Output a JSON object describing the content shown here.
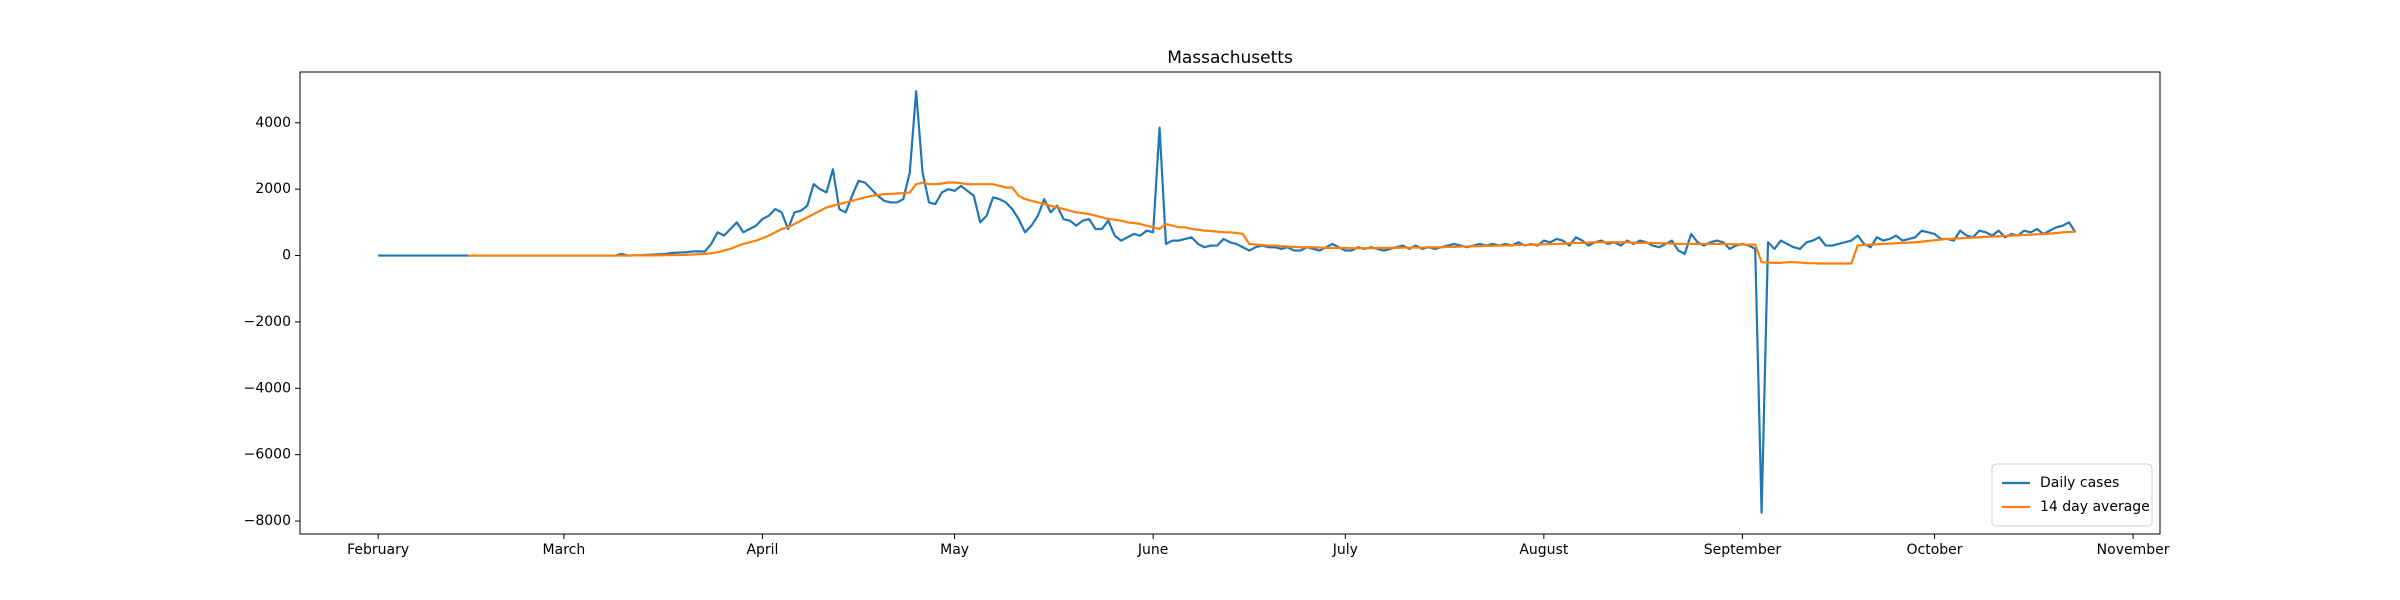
{
  "chart_data": {
    "type": "line",
    "title": "Massachusetts",
    "x": [
      0,
      1,
      2,
      3,
      4,
      5,
      6,
      7,
      8,
      9,
      10,
      11,
      12,
      13,
      14,
      15,
      16,
      17,
      18,
      19,
      20,
      21,
      22,
      23,
      24,
      25,
      26,
      27,
      28,
      29,
      30,
      31,
      32,
      33,
      34,
      35,
      36,
      37,
      38,
      39,
      40,
      41,
      42,
      43,
      44,
      45,
      46,
      47,
      48,
      49,
      50,
      51,
      52,
      53,
      54,
      55,
      56,
      57,
      58,
      59,
      60,
      61,
      62,
      63,
      64,
      65,
      66,
      67,
      68,
      69,
      70,
      71,
      72,
      73,
      74,
      75,
      76,
      77,
      78,
      79,
      80,
      81,
      82,
      83,
      84,
      85,
      86,
      87,
      88,
      89,
      90,
      91,
      92,
      93,
      94,
      95,
      96,
      97,
      98,
      99,
      100,
      101,
      102,
      103,
      104,
      105,
      106,
      107,
      108,
      109,
      110,
      111,
      112,
      113,
      114,
      115,
      116,
      117,
      118,
      119,
      120,
      121,
      122,
      123,
      124,
      125,
      126,
      127,
      128,
      129,
      130,
      131,
      132,
      133,
      134,
      135,
      136,
      137,
      138,
      139,
      140,
      141,
      142,
      143,
      144,
      145,
      146,
      147,
      148,
      149,
      150,
      151,
      152,
      153,
      154,
      155,
      156,
      157,
      158,
      159,
      160,
      161,
      162,
      163,
      164,
      165,
      166,
      167,
      168,
      169,
      170,
      171,
      172,
      173,
      174,
      175,
      176,
      177,
      178,
      179,
      180,
      181,
      182,
      183,
      184,
      185,
      186,
      187,
      188,
      189,
      190,
      191,
      192,
      193,
      194,
      195,
      196,
      197,
      198,
      199,
      200,
      201,
      202,
      203,
      204,
      205,
      206,
      207,
      208,
      209,
      210,
      211,
      212,
      213,
      214,
      215,
      216,
      217,
      218,
      219,
      220,
      221,
      222,
      223,
      224,
      225,
      226,
      227,
      228,
      229,
      230,
      231,
      232,
      233,
      234,
      235,
      236,
      237,
      238,
      239,
      240,
      241,
      242,
      243,
      244,
      245,
      246,
      247,
      248,
      249,
      250,
      251,
      252,
      253,
      254,
      255,
      256,
      257,
      258,
      259,
      260,
      261,
      262,
      263,
      264,
      265
    ],
    "series": [
      {
        "name": "Daily cases",
        "color": "#1f77b4",
        "values": [
          0,
          0,
          0,
          0,
          0,
          0,
          0,
          0,
          0,
          0,
          0,
          0,
          0,
          0,
          0,
          0,
          0,
          0,
          0,
          0,
          0,
          0,
          0,
          0,
          0,
          0,
          0,
          0,
          0,
          0,
          0,
          0,
          0,
          0,
          0,
          0,
          0,
          0,
          50,
          0,
          5,
          10,
          20,
          30,
          40,
          50,
          80,
          90,
          100,
          120,
          130,
          120,
          350,
          700,
          600,
          800,
          1000,
          700,
          800,
          900,
          1100,
          1200,
          1400,
          1300,
          800,
          1300,
          1350,
          1500,
          2150,
          2000,
          1900,
          2600,
          1400,
          1300,
          1800,
          2250,
          2200,
          2000,
          1800,
          1650,
          1600,
          1600,
          1700,
          2500,
          4950,
          2500,
          1600,
          1550,
          1900,
          2000,
          1950,
          2100,
          1950,
          1800,
          1000,
          1200,
          1750,
          1700,
          1600,
          1400,
          1100,
          700,
          900,
          1200,
          1700,
          1300,
          1500,
          1100,
          1050,
          900,
          1050,
          1100,
          800,
          800,
          1050,
          600,
          450,
          550,
          650,
          600,
          750,
          700,
          3850,
          350,
          450,
          450,
          500,
          550,
          350,
          250,
          300,
          300,
          500,
          400,
          350,
          250,
          150,
          250,
          300,
          250,
          250,
          200,
          250,
          150,
          150,
          250,
          200,
          150,
          250,
          350,
          250,
          150,
          150,
          250,
          200,
          250,
          200,
          150,
          200,
          250,
          300,
          200,
          300,
          200,
          250,
          200,
          250,
          300,
          350,
          300,
          250,
          300,
          350,
          300,
          350,
          300,
          350,
          300,
          400,
          300,
          350,
          300,
          450,
          400,
          500,
          450,
          300,
          550,
          450,
          300,
          400,
          450,
          350,
          400,
          300,
          450,
          350,
          450,
          400,
          300,
          250,
          350,
          450,
          150,
          50,
          650,
          400,
          300,
          400,
          450,
          400,
          200,
          300,
          350,
          300,
          200,
          -7750,
          400,
          200,
          450,
          350,
          250,
          200,
          400,
          450,
          550,
          300,
          300,
          350,
          400,
          450,
          600,
          350,
          250,
          550,
          450,
          500,
          600,
          450,
          500,
          550,
          750,
          700,
          650,
          500,
          500,
          450,
          750,
          600,
          550,
          750,
          700,
          600,
          750,
          550,
          650,
          600,
          750,
          700,
          800,
          650,
          750,
          850,
          900,
          1000,
          700
        ]
      },
      {
        "name": "14 day average",
        "color": "#ff7f0e",
        "values": [
          null,
          null,
          null,
          null,
          null,
          null,
          null,
          null,
          null,
          null,
          null,
          null,
          null,
          null,
          0,
          0,
          0,
          0,
          0,
          0,
          0,
          0,
          0,
          0,
          0,
          0,
          0,
          0,
          0,
          0,
          0,
          0,
          0,
          0,
          0,
          0,
          0,
          0,
          0,
          0,
          5,
          5,
          5,
          6,
          8,
          10,
          12,
          15,
          20,
          30,
          40,
          50,
          70,
          100,
          150,
          200,
          280,
          350,
          400,
          450,
          520,
          600,
          700,
          800,
          850,
          950,
          1050,
          1150,
          1250,
          1350,
          1450,
          1500,
          1550,
          1600,
          1650,
          1700,
          1750,
          1800,
          1820,
          1850,
          1860,
          1870,
          1880,
          1900,
          2150,
          2200,
          2150,
          2150,
          2170,
          2200,
          2200,
          2180,
          2150,
          2150,
          2150,
          2150,
          2150,
          2100,
          2050,
          2050,
          1800,
          1700,
          1650,
          1600,
          1550,
          1500,
          1450,
          1400,
          1350,
          1300,
          1280,
          1250,
          1200,
          1150,
          1100,
          1080,
          1050,
          1000,
          980,
          950,
          900,
          850,
          800,
          950,
          900,
          850,
          850,
          800,
          780,
          750,
          740,
          720,
          700,
          700,
          680,
          650,
          350,
          330,
          320,
          300,
          300,
          280,
          270,
          260,
          250,
          250,
          250,
          240,
          230,
          230,
          230,
          230,
          220,
          220,
          220,
          220,
          230,
          230,
          230,
          230,
          240,
          240,
          240,
          240,
          250,
          250,
          250,
          260,
          260,
          270,
          270,
          280,
          280,
          290,
          290,
          300,
          300,
          310,
          320,
          320,
          330,
          330,
          340,
          350,
          350,
          360,
          370,
          380,
          380,
          390,
          400,
          400,
          400,
          400,
          400,
          400,
          390,
          380,
          380,
          380,
          370,
          370,
          360,
          350,
          350,
          350,
          350,
          350,
          350,
          350,
          350,
          340,
          340,
          330,
          330,
          330,
          -200,
          -210,
          -220,
          -220,
          -200,
          -200,
          -210,
          -230,
          -230,
          -240,
          -240,
          -240,
          -240,
          -240,
          -240,
          300,
          320,
          330,
          340,
          350,
          360,
          370,
          380,
          390,
          400,
          420,
          440,
          460,
          480,
          500,
          510,
          520,
          530,
          540,
          550,
          560,
          570,
          580,
          590,
          600,
          610,
          620,
          630,
          640,
          650,
          660,
          680,
          700,
          710,
          720
        ]
      }
    ],
    "xlim": [
      -12.2,
      278.2
    ],
    "xticks": [
      {
        "value": 0,
        "label": "February"
      },
      {
        "value": 29,
        "label": "March"
      },
      {
        "value": 60,
        "label": "April"
      },
      {
        "value": 90,
        "label": "May"
      },
      {
        "value": 121,
        "label": "June"
      },
      {
        "value": 151,
        "label": "July"
      },
      {
        "value": 182,
        "label": "August"
      },
      {
        "value": 213,
        "label": "September"
      },
      {
        "value": 243,
        "label": "October"
      },
      {
        "value": 274,
        "label": "November"
      }
    ],
    "ylim": [
      -8390,
      5530
    ],
    "yticks": [
      {
        "value": -8000,
        "label": "−8000"
      },
      {
        "value": -6000,
        "label": "−6000"
      },
      {
        "value": -4000,
        "label": "−4000"
      },
      {
        "value": -2000,
        "label": "−2000"
      },
      0,
      2000,
      4000
    ],
    "grid": false,
    "legend": "lower right"
  }
}
